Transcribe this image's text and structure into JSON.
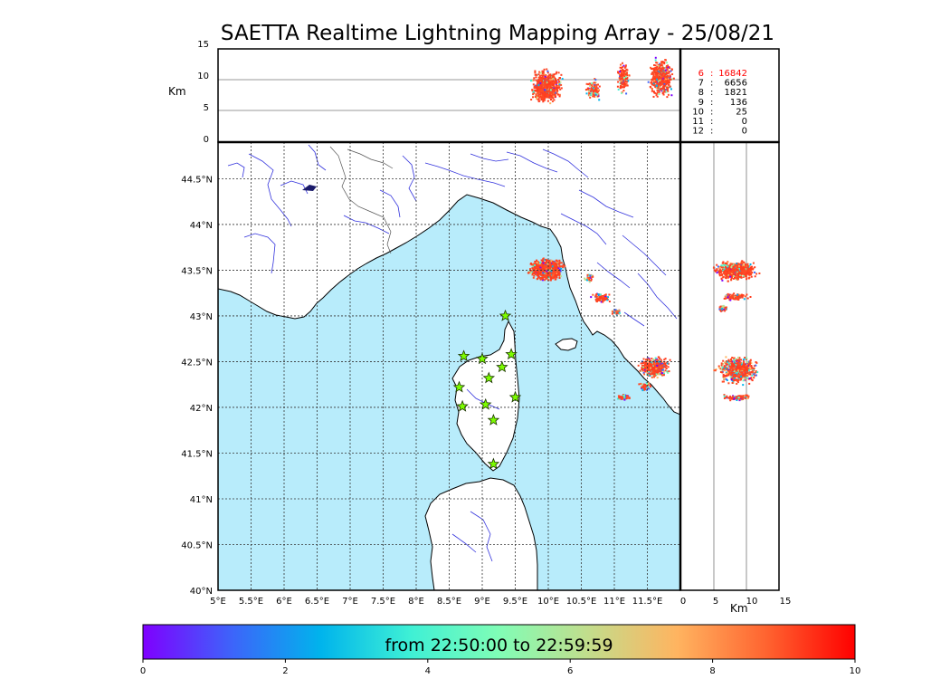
{
  "title": "SAETTA Realtime Lightning Mapping Array - 25/08/21",
  "top_panel": {
    "ylabel": "Km",
    "yticks": [
      "15",
      "10",
      "5",
      "0"
    ]
  },
  "right_panel": {
    "xlabel": "Km",
    "xticks": [
      "0",
      "5",
      "10",
      "15"
    ]
  },
  "map": {
    "lon_ticks": [
      "5°E",
      "5.5°E",
      "6°E",
      "6.5°E",
      "7°E",
      "7.5°E",
      "8°E",
      "8.5°E",
      "9°E",
      "9.5°E",
      "10°E",
      "10.5°E",
      "11°E",
      "11.5°E"
    ],
    "lat_ticks": [
      "44.5°N",
      "44°N",
      "43.5°N",
      "43°N",
      "42.5°N",
      "42°N",
      "41.5°N",
      "41°N",
      "40.5°N",
      "40°N"
    ],
    "sea_color": "#b8ecfb",
    "land_color": "#ffffff",
    "river_color": "#3333dd",
    "station_marker": "star-icon",
    "station_color": "#7cfc00",
    "stations": [
      {
        "lon": 9.35,
        "lat": 43.0
      },
      {
        "lon": 8.72,
        "lat": 42.56
      },
      {
        "lon": 9.0,
        "lat": 42.53
      },
      {
        "lon": 9.44,
        "lat": 42.58
      },
      {
        "lon": 9.3,
        "lat": 42.44
      },
      {
        "lon": 9.1,
        "lat": 42.32
      },
      {
        "lon": 8.65,
        "lat": 42.22
      },
      {
        "lon": 9.5,
        "lat": 42.11
      },
      {
        "lon": 8.7,
        "lat": 42.01
      },
      {
        "lon": 9.05,
        "lat": 42.03
      },
      {
        "lon": 9.17,
        "lat": 41.86
      },
      {
        "lon": 9.17,
        "lat": 41.38
      }
    ]
  },
  "counts": [
    {
      "level": "6",
      "count": "16842",
      "color": "#ff0000"
    },
    {
      "level": "7",
      "count": "6656",
      "color": "#000000"
    },
    {
      "level": "8",
      "count": "1821",
      "color": "#000000"
    },
    {
      "level": "9",
      "count": "136",
      "color": "#000000"
    },
    {
      "level": "10",
      "count": "25",
      "color": "#000000"
    },
    {
      "level": "11",
      "count": "0",
      "color": "#000000"
    },
    {
      "level": "12",
      "count": "0",
      "color": "#000000"
    }
  ],
  "colorbar": {
    "label": "from 22:50:00 to 22:59:59",
    "ticks": [
      "0",
      "2",
      "4",
      "6",
      "8",
      "10"
    ],
    "stops": [
      "#7f00ff",
      "#3d64fa",
      "#00b4ec",
      "#3ef0d5",
      "#80fdb6",
      "#c2dd8c",
      "#ffb460",
      "#ff6430",
      "#ff0000"
    ]
  }
}
